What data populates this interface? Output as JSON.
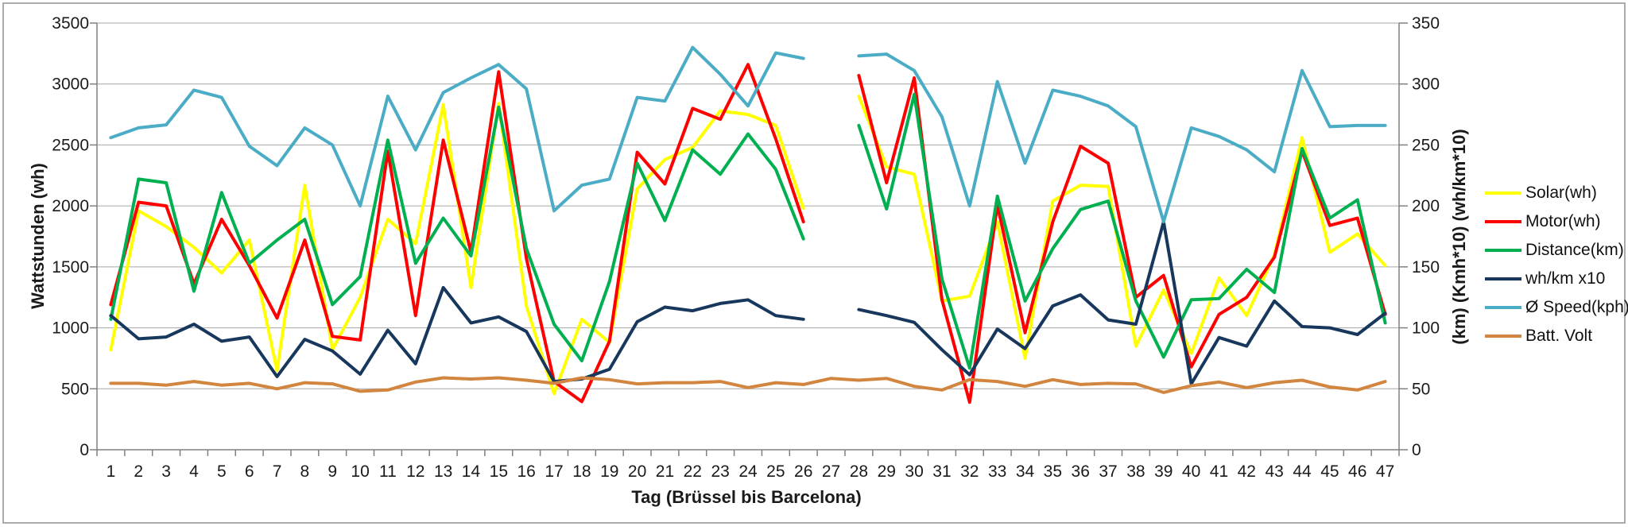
{
  "chart_data": {
    "type": "line",
    "title": "",
    "xlabel": "Tag (Brüssel bis Barcelona)",
    "ylabel_left": "Wattstunden (wh)",
    "ylabel_right": "(km) (Kmh*10) (wh/km*10)",
    "ylim_left": [
      0,
      3500
    ],
    "ytick_step_left": 500,
    "ylim_right": [
      0,
      350
    ],
    "ytick_step_right": 50,
    "grid": true,
    "legend_position": "right",
    "note": "values plotted against left wh axis; right axis shows same scale divided by 10; no data on day 27 except Batt. Volt",
    "x": [
      1,
      2,
      3,
      4,
      5,
      6,
      7,
      8,
      9,
      10,
      11,
      12,
      13,
      14,
      15,
      16,
      17,
      18,
      19,
      20,
      21,
      22,
      23,
      24,
      25,
      26,
      27,
      28,
      29,
      30,
      31,
      32,
      33,
      34,
      35,
      36,
      37,
      38,
      39,
      40,
      41,
      42,
      43,
      44,
      45,
      46,
      47
    ],
    "series": [
      {
        "name": "Solar(wh)",
        "color": "#ffff00",
        "values": [
          820,
          1960,
          1830,
          1660,
          1450,
          1720,
          650,
          2170,
          820,
          1250,
          1890,
          1690,
          2830,
          1330,
          2840,
          1180,
          460,
          1070,
          880,
          2140,
          2380,
          2480,
          2780,
          2750,
          2660,
          1980,
          null,
          2900,
          2320,
          2260,
          1220,
          1260,
          1870,
          750,
          2040,
          2170,
          2160,
          850,
          1310,
          790,
          1410,
          1100,
          1600,
          2560,
          1620,
          1770,
          1510
        ]
      },
      {
        "name": "Motor(wh)",
        "color": "#ff0000",
        "values": [
          1190,
          2030,
          2000,
          1360,
          1890,
          1510,
          1080,
          1720,
          930,
          900,
          2450,
          1100,
          2540,
          1620,
          3100,
          1570,
          560,
          395,
          890,
          2440,
          2180,
          2800,
          2710,
          3160,
          2550,
          1870,
          null,
          3070,
          2190,
          3050,
          1230,
          390,
          2010,
          960,
          1870,
          2490,
          2350,
          1250,
          1430,
          680,
          1110,
          1250,
          1580,
          2450,
          1840,
          1900,
          1110
        ]
      },
      {
        "name": "Distance(km)",
        "color": "#00b050",
        "values": [
          1070,
          2220,
          2190,
          1300,
          2110,
          1530,
          1720,
          1890,
          1190,
          1420,
          2540,
          1530,
          1900,
          1590,
          2810,
          1650,
          1030,
          730,
          1380,
          2350,
          1880,
          2460,
          2260,
          2590,
          2300,
          1730,
          null,
          2660,
          1975,
          2915,
          1400,
          670,
          2080,
          1220,
          1650,
          1970,
          2040,
          1220,
          760,
          1230,
          1240,
          1480,
          1290,
          2470,
          1900,
          2050,
          1040
        ]
      },
      {
        "name": "wh/km x10",
        "color": "#17375d",
        "values": [
          1100,
          910,
          925,
          1030,
          890,
          925,
          600,
          905,
          810,
          620,
          980,
          705,
          1330,
          1040,
          1090,
          970,
          560,
          580,
          660,
          1050,
          1170,
          1140,
          1200,
          1230,
          1100,
          1070,
          null,
          1150,
          1100,
          1045,
          820,
          615,
          990,
          830,
          1180,
          1270,
          1065,
          1030,
          1870,
          540,
          920,
          850,
          1220,
          1010,
          1000,
          945,
          1120
        ]
      },
      {
        "name": "Ø Speed(kph)",
        "color": "#4bacc6",
        "values": [
          2560,
          2640,
          2665,
          2950,
          2890,
          2490,
          2330,
          2640,
          2500,
          2000,
          2900,
          2460,
          2930,
          3050,
          3160,
          2960,
          1960,
          2170,
          2220,
          2890,
          2860,
          3300,
          3080,
          2820,
          3255,
          3210,
          null,
          3230,
          3245,
          3110,
          2730,
          2000,
          3020,
          2350,
          2950,
          2900,
          2820,
          2650,
          1870,
          2640,
          2570,
          2460,
          2280,
          3110,
          2650,
          2660,
          2660
        ]
      },
      {
        "name": "Batt. Volt",
        "color": "#d2853f",
        "values": [
          545,
          545,
          530,
          560,
          530,
          545,
          500,
          550,
          540,
          480,
          490,
          555,
          590,
          580,
          590,
          570,
          545,
          590,
          575,
          540,
          550,
          550,
          560,
          510,
          550,
          535,
          585,
          570,
          585,
          520,
          490,
          575,
          560,
          520,
          575,
          535,
          545,
          540,
          470,
          525,
          555,
          510,
          550,
          570,
          515,
          490,
          560
        ]
      }
    ]
  },
  "figure": {
    "left_axis_ticks": [
      "0",
      "500",
      "1000",
      "1500",
      "2000",
      "2500",
      "3000",
      "3500"
    ],
    "right_axis_ticks": [
      "0",
      "50",
      "100",
      "150",
      "200",
      "250",
      "300",
      "350"
    ]
  }
}
